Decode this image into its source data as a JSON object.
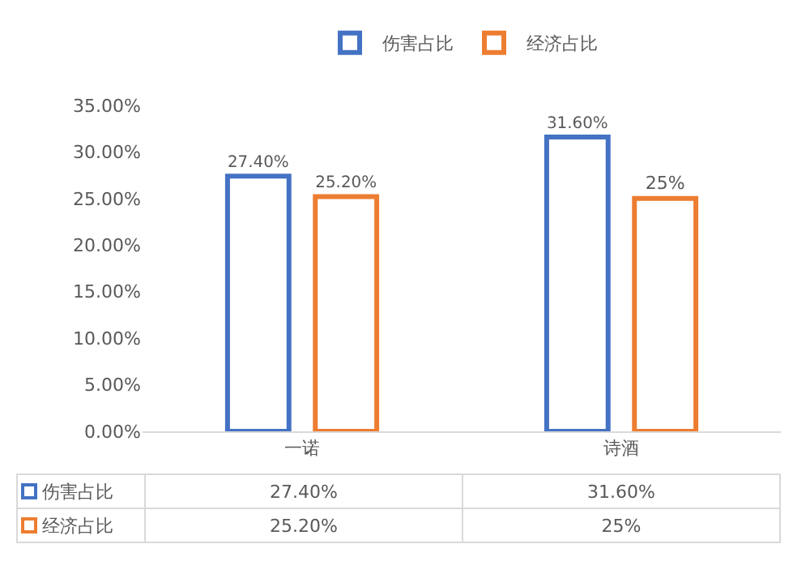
{
  "chart_data": {
    "type": "bar",
    "categories": [
      "一诺",
      "诗酒"
    ],
    "series": [
      {
        "name": "伤害占比",
        "color": "#4472c4",
        "values": [
          27.4,
          31.6
        ],
        "value_labels": [
          "27.40%",
          "31.60%"
        ]
      },
      {
        "name": "经济占比",
        "color": "#ed7d31",
        "values": [
          25.2,
          25
        ],
        "value_labels": [
          "25.20%",
          "25%"
        ]
      }
    ],
    "ylim": [
      0,
      35
    ],
    "yticks": [
      {
        "value": 0,
        "label": "0.00%"
      },
      {
        "value": 5,
        "label": "5.00%"
      },
      {
        "value": 10,
        "label": "10.00%"
      },
      {
        "value": 15,
        "label": "15.00%"
      },
      {
        "value": 20,
        "label": "20.00%"
      },
      {
        "value": 25,
        "label": "25.00%"
      },
      {
        "value": 30,
        "label": "30.00%"
      },
      {
        "value": 35,
        "label": "35.00%"
      }
    ],
    "legend": "top"
  }
}
